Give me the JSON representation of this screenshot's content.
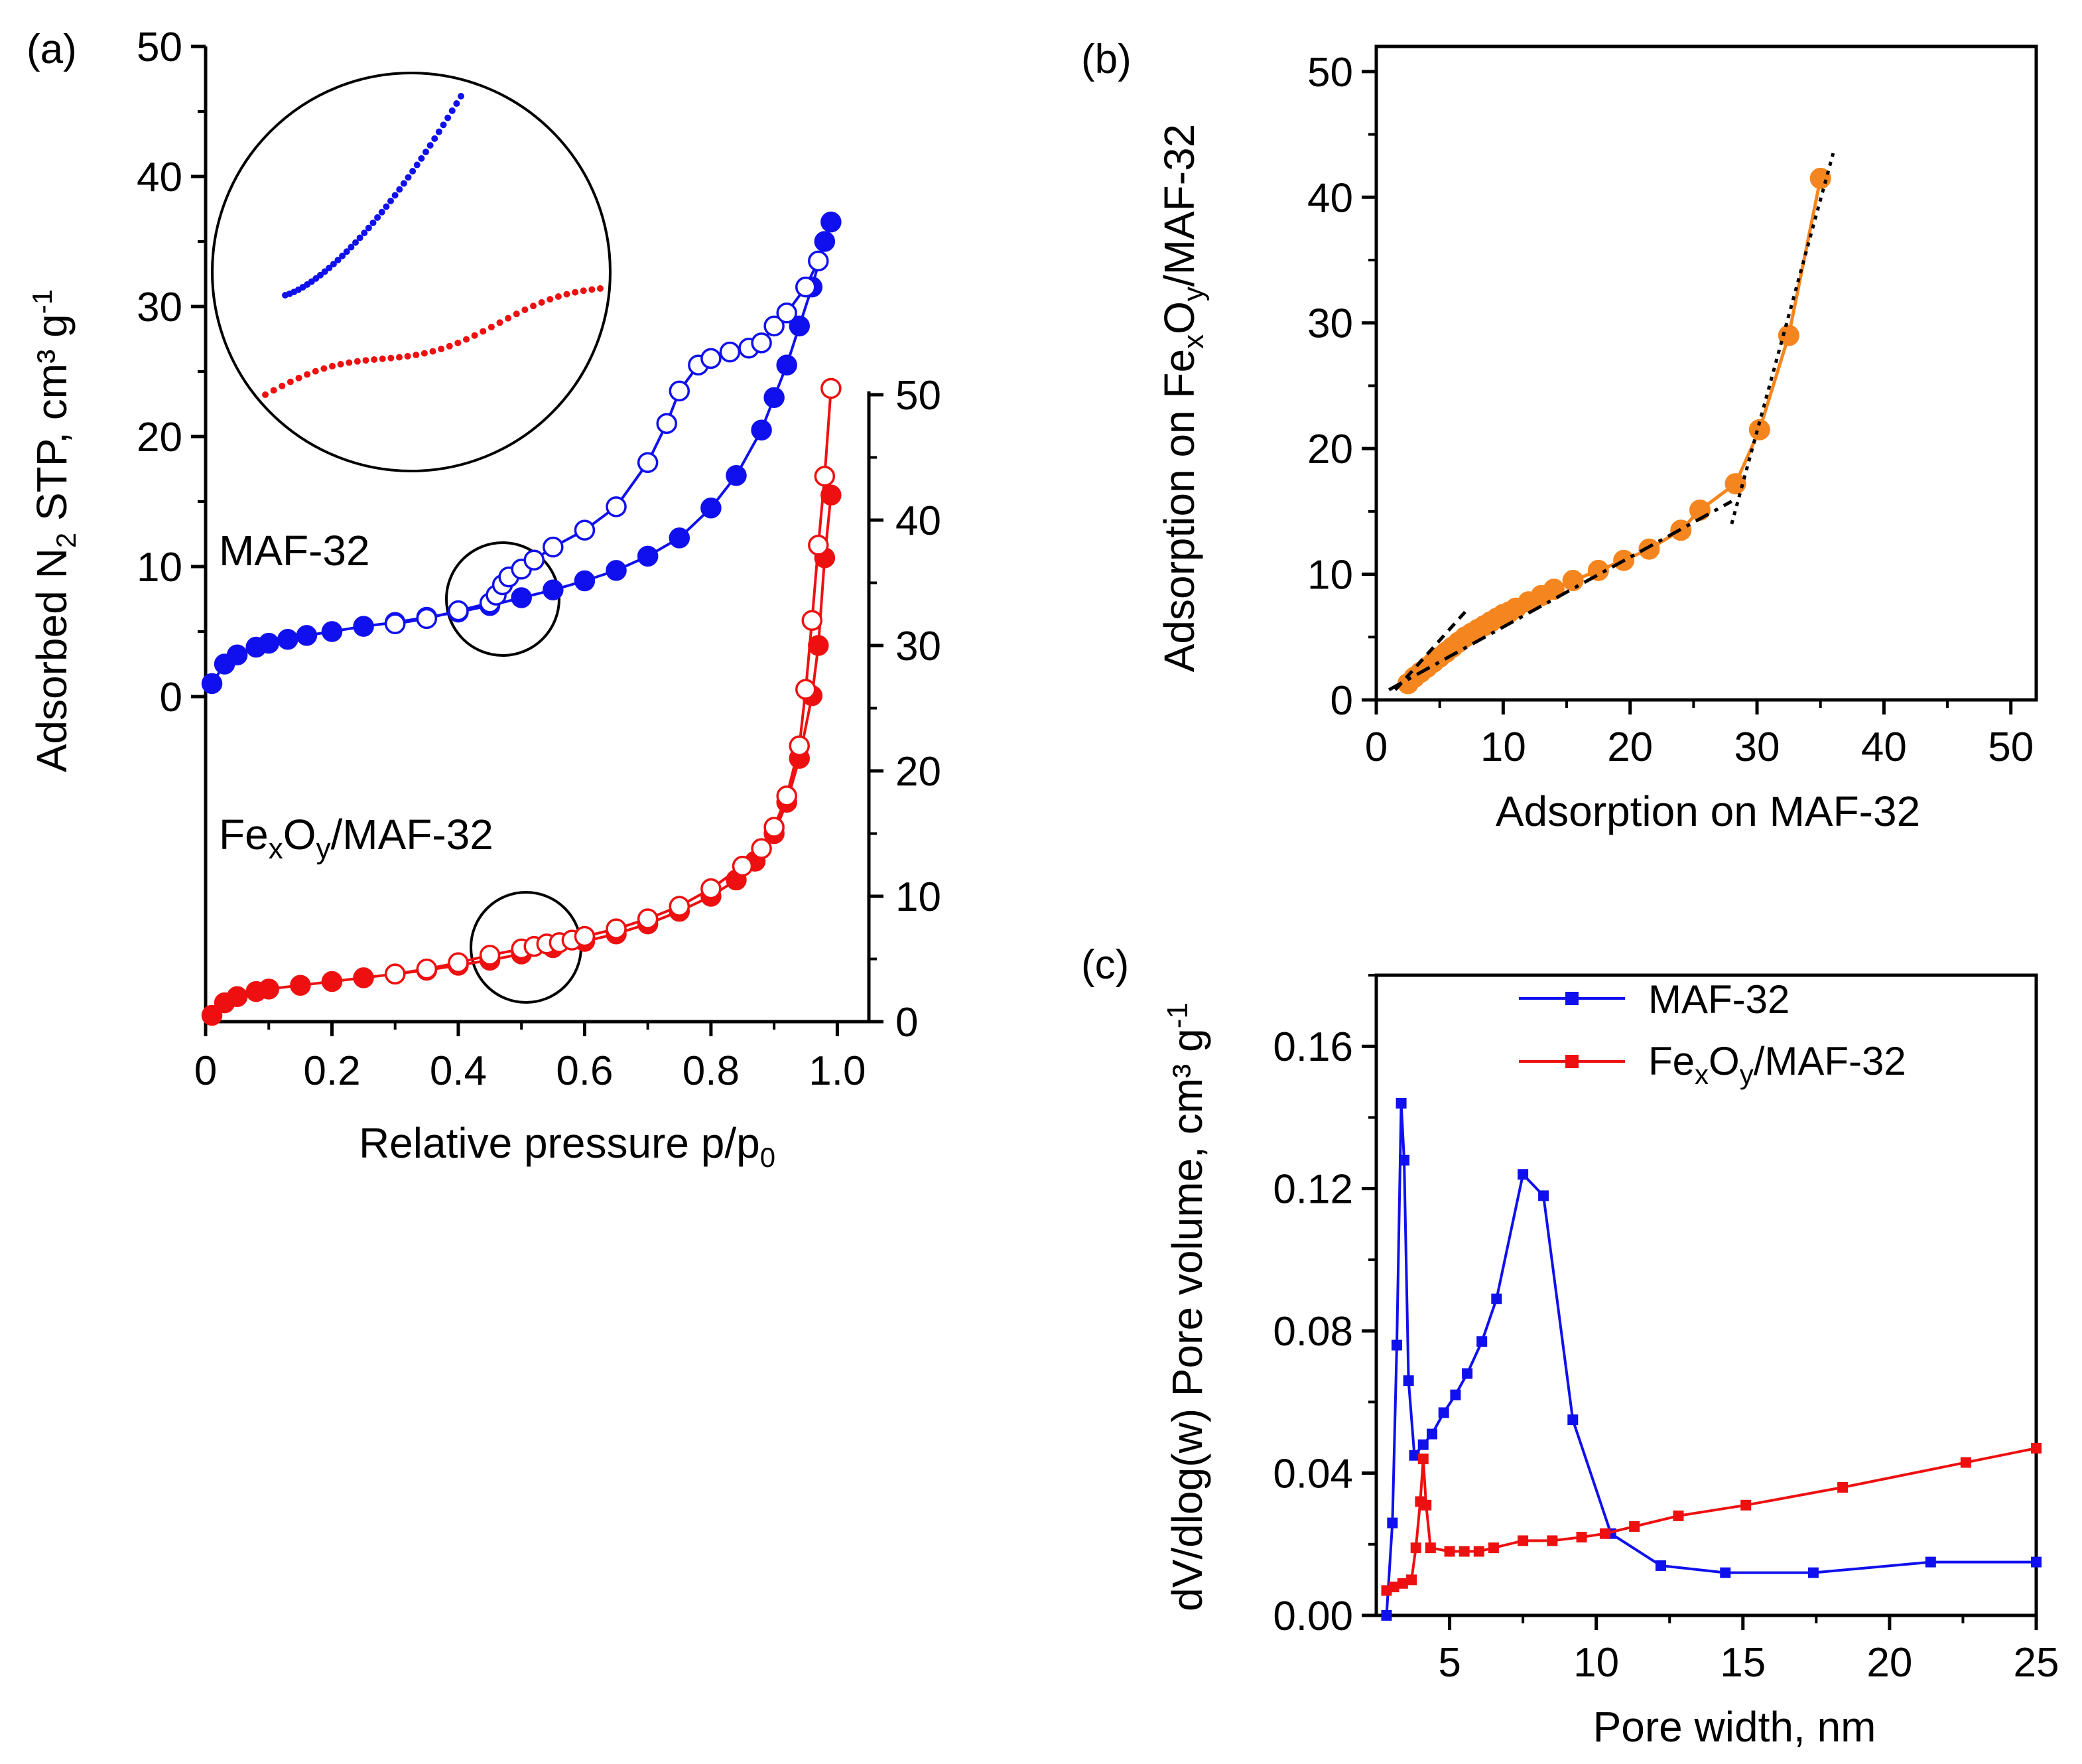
{
  "colors": {
    "blue": "#1010ee",
    "red": "#ee1010",
    "orange": "#f5861f",
    "axis": "#000000"
  },
  "chart_data": [
    {
      "panel": "(a)",
      "type": "scatter",
      "xlabel": "Relative pressure p/p0",
      "xlabel_main": "Relative pressure p/p",
      "xlabel_sub": "0",
      "ylabel_left": "Adsorbed N2 STP, cm³ g-1",
      "ylabel_left_parts": {
        "a": "Adsorbed N",
        "b": "2",
        "c": " STP, cm³ g",
        "d": "-1"
      },
      "xlim": [
        0,
        1.05
      ],
      "ylim_left": [
        0,
        50
      ],
      "ylim_right": [
        0,
        50
      ],
      "x_ticks": [
        "0",
        "0.2",
        "0.4",
        "0.6",
        "0.8",
        "1.0"
      ],
      "y_ticks_left": [
        "0",
        "10",
        "20",
        "30",
        "40",
        "50"
      ],
      "y_ticks_right": [
        "0",
        "10",
        "20",
        "30",
        "40",
        "50"
      ],
      "labels": {
        "maf": "MAF-32",
        "fe_a": "Fe",
        "fe_b": "x",
        "fe_c": "O",
        "fe_d": "y",
        "fe_e": "/MAF-32"
      },
      "series": [
        {
          "name": "MAF-32",
          "branch": "adsorption",
          "axis": "left",
          "x": [
            0.01,
            0.03,
            0.05,
            0.08,
            0.1,
            0.13,
            0.16,
            0.2,
            0.25,
            0.3,
            0.35,
            0.4,
            0.45,
            0.5,
            0.55,
            0.6,
            0.65,
            0.7,
            0.75,
            0.8,
            0.84,
            0.88,
            0.9,
            0.92,
            0.94,
            0.96,
            0.98,
            0.99
          ],
          "y": [
            1.0,
            2.5,
            3.2,
            3.8,
            4.1,
            4.4,
            4.7,
            5.0,
            5.4,
            5.7,
            6.1,
            6.5,
            7.0,
            7.6,
            8.2,
            8.9,
            9.7,
            10.8,
            12.2,
            14.5,
            17.0,
            20.5,
            23.0,
            25.5,
            28.5,
            31.5,
            35.0,
            36.5
          ]
        },
        {
          "name": "MAF-32",
          "branch": "desorption",
          "axis": "left",
          "x": [
            0.3,
            0.35,
            0.4,
            0.45,
            0.46,
            0.47,
            0.48,
            0.5,
            0.52,
            0.55,
            0.6,
            0.65,
            0.7,
            0.73,
            0.75,
            0.78,
            0.8,
            0.83,
            0.86,
            0.88,
            0.9,
            0.92,
            0.95,
            0.97
          ],
          "y": [
            5.6,
            6.0,
            6.6,
            7.2,
            7.8,
            8.6,
            9.2,
            9.8,
            10.5,
            11.5,
            12.8,
            14.6,
            18.0,
            21.0,
            23.5,
            25.5,
            26.0,
            26.5,
            26.8,
            27.2,
            28.5,
            29.5,
            31.5,
            33.5
          ]
        },
        {
          "name": "Fe",
          "branch": "adsorption",
          "axis": "right",
          "x": [
            0.01,
            0.03,
            0.05,
            0.08,
            0.1,
            0.15,
            0.2,
            0.25,
            0.3,
            0.35,
            0.4,
            0.45,
            0.5,
            0.55,
            0.6,
            0.65,
            0.7,
            0.75,
            0.8,
            0.84,
            0.87,
            0.9,
            0.92,
            0.94,
            0.96,
            0.97,
            0.98,
            0.99
          ],
          "y": [
            0.5,
            1.5,
            2.0,
            2.4,
            2.6,
            2.9,
            3.2,
            3.5,
            3.8,
            4.1,
            4.5,
            4.9,
            5.4,
            5.9,
            6.4,
            7.0,
            7.8,
            8.8,
            10.0,
            11.3,
            12.8,
            15.0,
            17.5,
            21.0,
            26.0,
            30.0,
            37.0,
            42.0
          ]
        },
        {
          "name": "Fe",
          "branch": "desorption",
          "axis": "right",
          "x": [
            0.3,
            0.35,
            0.4,
            0.45,
            0.5,
            0.52,
            0.54,
            0.56,
            0.58,
            0.6,
            0.65,
            0.7,
            0.75,
            0.8,
            0.85,
            0.88,
            0.9,
            0.92,
            0.94,
            0.95,
            0.96,
            0.97,
            0.98,
            0.99
          ],
          "y": [
            3.8,
            4.2,
            4.7,
            5.3,
            5.8,
            6.0,
            6.2,
            6.3,
            6.5,
            6.8,
            7.4,
            8.2,
            9.2,
            10.6,
            12.4,
            13.8,
            15.5,
            18.0,
            22.0,
            26.5,
            32.0,
            38.0,
            43.5,
            50.5
          ]
        }
      ],
      "inset_note": ""
    },
    {
      "panel": "(b)",
      "type": "line",
      "xlabel": "Adsorption on MAF-32",
      "ylabel": "Adsorption on FexOy/MAF-32",
      "ylabel_parts": {
        "a": "Adsorption on Fe",
        "b": "x",
        "c": "O",
        "d": "y",
        "e": "/MAF-32"
      },
      "xlim": [
        0,
        52
      ],
      "ylim": [
        0,
        52
      ],
      "x_ticks": [
        "0",
        "10",
        "20",
        "30",
        "40",
        "50"
      ],
      "y_ticks": [
        "0",
        "10",
        "20",
        "30",
        "40",
        "50"
      ],
      "series": [
        {
          "name": "",
          "x": [
            2.5,
            3.0,
            3.5,
            4.0,
            4.5,
            5.0,
            5.5,
            6.0,
            6.5,
            7.0,
            7.5,
            8.0,
            8.5,
            9.0,
            9.5,
            10.0,
            10.5,
            11.0,
            12.0,
            13.0,
            14.0,
            15.5,
            17.5,
            19.5,
            21.5,
            24.0,
            25.5,
            28.3,
            30.2,
            32.5,
            35.0
          ],
          "y": [
            1.3,
            1.8,
            2.2,
            2.6,
            3.0,
            3.4,
            3.8,
            4.2,
            4.6,
            5.0,
            5.3,
            5.6,
            5.9,
            6.2,
            6.5,
            6.8,
            7.0,
            7.3,
            7.8,
            8.3,
            8.8,
            9.5,
            10.3,
            11.1,
            12.0,
            13.5,
            15.1,
            17.2,
            21.5,
            29.0,
            41.5
          ]
        }
      ],
      "fit_lines": [
        {
          "style": "dash",
          "x": [
            1.5,
            7.0
          ],
          "y": [
            0.8,
            7.0
          ]
        },
        {
          "style": "dashdot",
          "x": [
            1.0,
            28.0
          ],
          "y": [
            0.8,
            15.8
          ]
        },
        {
          "style": "dot",
          "x": [
            28.0,
            36.0
          ],
          "y": [
            14.0,
            43.5
          ]
        }
      ]
    },
    {
      "panel": "(c)",
      "type": "line",
      "xlabel": "Pore width, nm",
      "ylabel": "dV/dlog(w) Pore volume, cm³ g-1",
      "ylabel_parts": {
        "a": "dV/dlog(w) Pore volume, cm³ g",
        "b": "-1"
      },
      "xlim": [
        2.5,
        25
      ],
      "ylim": [
        0,
        0.18
      ],
      "x_ticks": [
        "5",
        "10",
        "15",
        "20",
        "25"
      ],
      "y_ticks": [
        "0.00",
        "0.04",
        "0.08",
        "0.12",
        "0.16"
      ],
      "legend": [
        "MAF-32",
        "FexOy/MAF-32"
      ],
      "legend_fe_parts": {
        "a": "Fe",
        "b": "x",
        "c": "O",
        "d": "y",
        "e": "/MAF-32"
      },
      "series": [
        {
          "name": "MAF-32",
          "x": [
            2.85,
            3.05,
            3.2,
            3.35,
            3.45,
            3.6,
            3.8,
            4.1,
            4.4,
            4.8,
            5.2,
            5.6,
            6.1,
            6.6,
            7.5,
            8.2,
            9.2,
            10.5,
            12.2,
            14.4,
            17.4,
            21.4,
            25.0
          ],
          "y": [
            0.0,
            0.026,
            0.076,
            0.144,
            0.128,
            0.066,
            0.045,
            0.048,
            0.051,
            0.057,
            0.062,
            0.068,
            0.077,
            0.089,
            0.124,
            0.118,
            0.055,
            0.023,
            0.014,
            0.012,
            0.012,
            0.015,
            0.015
          ]
        },
        {
          "name": "FexOy/MAF-32",
          "x": [
            2.85,
            3.1,
            3.4,
            3.7,
            3.85,
            4.0,
            4.1,
            4.2,
            4.35,
            5.0,
            5.5,
            6.0,
            6.5,
            7.5,
            8.5,
            9.5,
            10.3,
            11.3,
            12.8,
            15.1,
            18.4,
            22.6,
            25.0
          ],
          "y": [
            0.007,
            0.008,
            0.009,
            0.01,
            0.019,
            0.032,
            0.044,
            0.031,
            0.019,
            0.018,
            0.018,
            0.018,
            0.019,
            0.021,
            0.021,
            0.022,
            0.023,
            0.025,
            0.028,
            0.031,
            0.036,
            0.043,
            0.047
          ]
        }
      ]
    }
  ]
}
